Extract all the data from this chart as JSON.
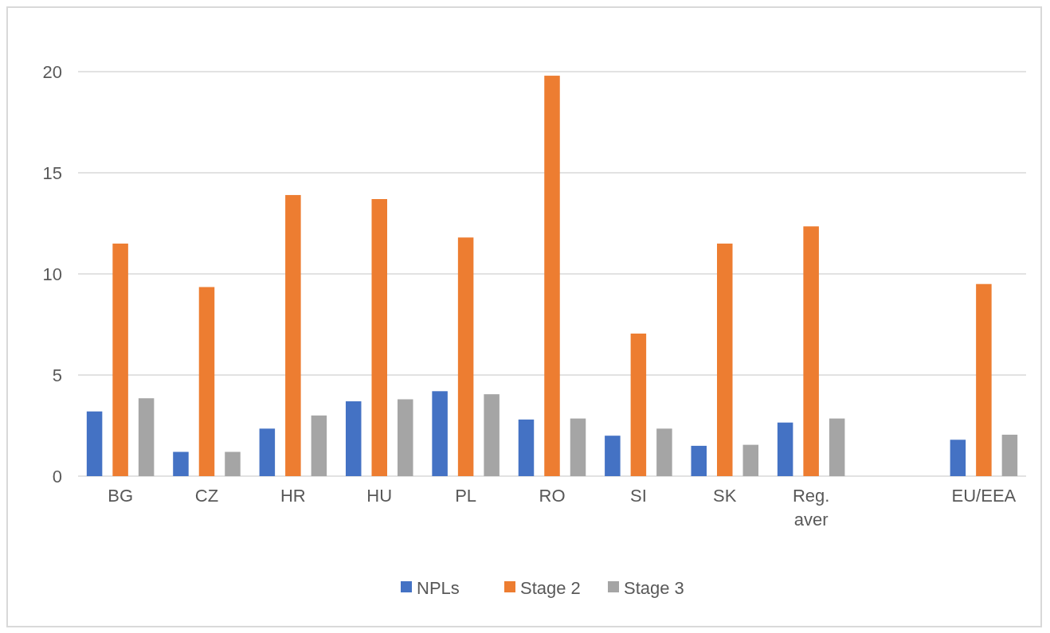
{
  "chart_data": {
    "type": "bar",
    "categories": [
      "BG",
      "CZ",
      "HR",
      "HU",
      "PL",
      "RO",
      "SI",
      "SK",
      "Reg. aver",
      null,
      "EU/EEA"
    ],
    "series": [
      {
        "name": "NPLs",
        "color": "#4472c4",
        "values": [
          3.2,
          1.2,
          2.35,
          3.7,
          4.2,
          2.8,
          2.0,
          1.5,
          2.65,
          null,
          1.8
        ]
      },
      {
        "name": "Stage 2",
        "color": "#ed7d31",
        "values": [
          11.5,
          9.35,
          13.9,
          13.7,
          11.8,
          19.8,
          7.05,
          11.5,
          12.35,
          null,
          9.5
        ]
      },
      {
        "name": "Stage 3",
        "color": "#a5a5a5",
        "values": [
          3.85,
          1.2,
          3.0,
          3.8,
          4.05,
          2.85,
          2.35,
          1.55,
          2.85,
          null,
          2.05
        ]
      }
    ],
    "ylim": [
      0,
      20
    ],
    "yticks": [
      0,
      5,
      10,
      15,
      20
    ],
    "grid": "y",
    "legend": "bottom"
  }
}
